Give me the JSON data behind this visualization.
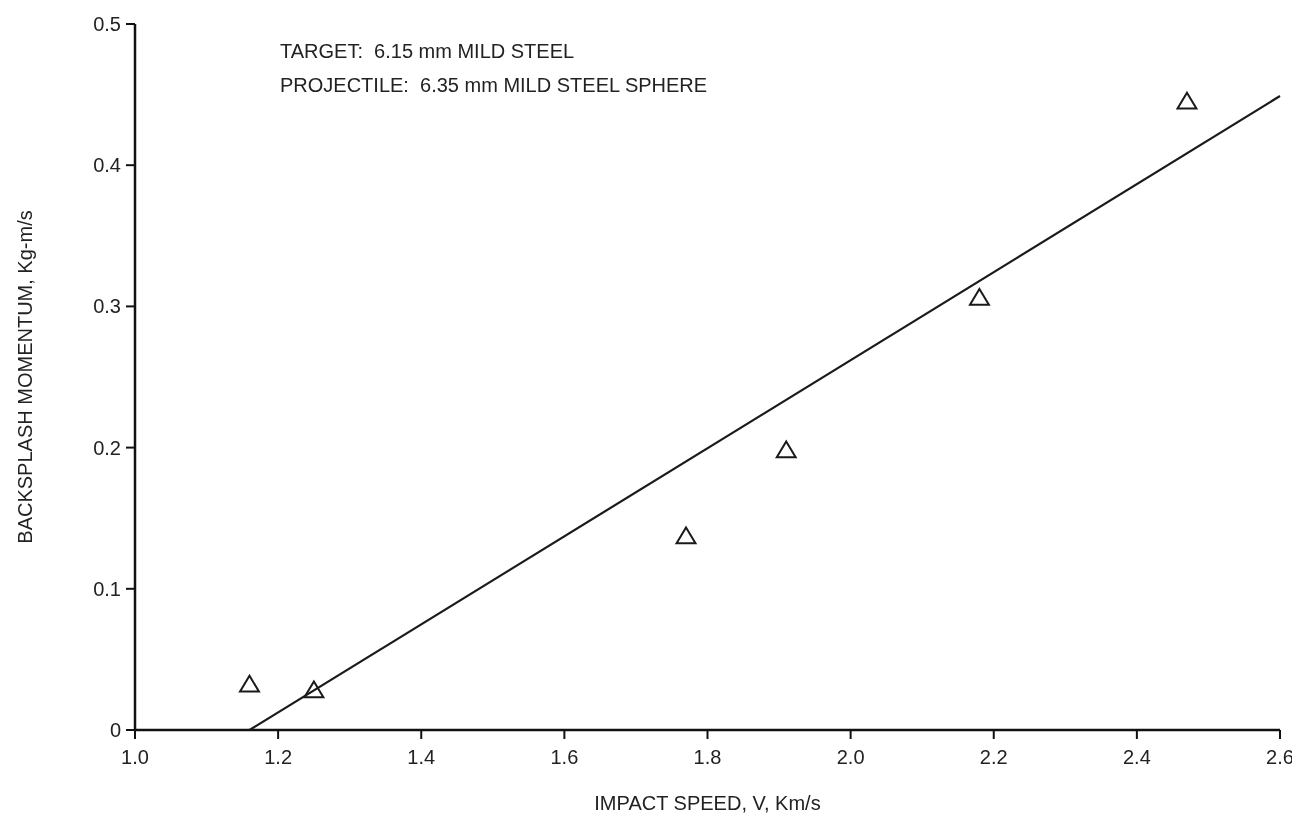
{
  "chart_data": {
    "type": "scatter",
    "xlabel": "IMPACT SPEED, V, Km/s",
    "ylabel": "BACKSPLASH MOMENTUM, Kg-m/s",
    "annotations": [
      "TARGET:  6.15 mm MILD STEEL",
      "PROJECTILE:  6.35 mm MILD STEEL SPHERE"
    ],
    "xlim": [
      1.0,
      2.6
    ],
    "xticks": [
      {
        "value": 1.0,
        "label": "1.0"
      },
      1.2,
      1.4,
      1.6,
      1.8,
      {
        "value": 2.0,
        "label": "2.0"
      },
      2.2,
      2.4,
      2.6
    ],
    "ylim": [
      0,
      0.5
    ],
    "yticks": [
      0,
      0.1,
      0.2,
      0.3,
      0.4,
      0.5
    ],
    "grid": false,
    "series": [
      {
        "color": "#1a1a1a",
        "marker": "triangle",
        "x": [
          1.16,
          1.25,
          1.77,
          1.91,
          2.18,
          2.47
        ],
        "values": [
          0.032,
          0.028,
          0.137,
          0.198,
          0.306,
          0.445
        ]
      },
      {
        "type": "line",
        "color": "#1a1a1a",
        "marker": "none",
        "line_style": "solid",
        "x": [
          1.16,
          2.6
        ],
        "values": [
          0,
          0.449
        ]
      }
    ]
  }
}
